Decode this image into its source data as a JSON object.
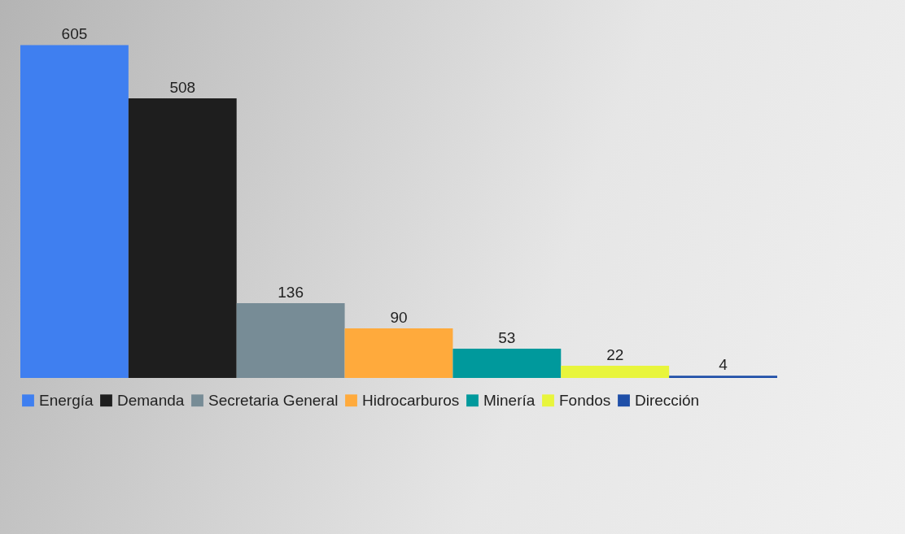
{
  "chart_data": {
    "type": "bar",
    "categories": [
      null
    ],
    "data_labels": true,
    "legend": "bottom",
    "series": [
      {
        "name": "Energía",
        "color": "#3f7ff0",
        "values": [
          605
        ]
      },
      {
        "name": "Demanda",
        "color": "#1e1e1e",
        "values": [
          508
        ]
      },
      {
        "name": "Secretaria General",
        "color": "#778c96",
        "values": [
          136
        ]
      },
      {
        "name": "Hidrocarburos",
        "color": "#ffaa3c",
        "values": [
          90
        ]
      },
      {
        "name": "Minería",
        "color": "#00999c",
        "values": [
          53
        ]
      },
      {
        "name": "Fondos",
        "color": "#e8f53c",
        "values": [
          22
        ]
      },
      {
        "name": "Dirección",
        "color": "#1f4fa8",
        "values": [
          4
        ]
      }
    ]
  }
}
